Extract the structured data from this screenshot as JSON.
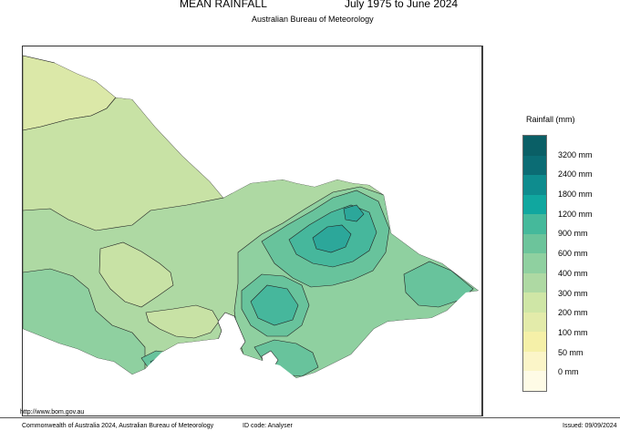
{
  "header": {
    "title": "MEAN RAINFALL",
    "period": "July 1975 to June 2024",
    "subtitle": "Australian Bureau of Meteorology"
  },
  "legend": {
    "title": "Rainfall (mm)",
    "classes": [
      {
        "label": "3200 mm",
        "color": "#0b6c74"
      },
      {
        "label": "2400 mm",
        "color": "#0e8c8e"
      },
      {
        "label": "1800 mm",
        "color": "#10a79f"
      },
      {
        "label": "1200 mm",
        "color": "#45b99b"
      },
      {
        "label": "900 mm",
        "color": "#6cc49b"
      },
      {
        "label": "600 mm",
        "color": "#8fd0a0"
      },
      {
        "label": "400 mm",
        "color": "#aed9a3"
      },
      {
        "label": "300 mm",
        "color": "#cfe6a6"
      },
      {
        "label": "200 mm",
        "color": "#e3ebaa"
      },
      {
        "label": "100 mm",
        "color": "#f5f0a8"
      },
      {
        "label": "50 mm",
        "color": "#fbf5c8"
      },
      {
        "label": "0 mm",
        "color": "#fefbe6"
      }
    ]
  },
  "map": {
    "region": "Victoria",
    "zone_colors": {
      "lt300": "#dbe8a8",
      "r300_400": "#c8e2a5",
      "r400_600": "#aed9a3",
      "r600_900": "#8fd0a0",
      "r900_1200": "#68c39c",
      "r1200_1800": "#46b79c",
      "r1800_2400": "#2ca79a",
      "water": "#ffffff"
    }
  },
  "footer": {
    "url": "http://www.bom.gov.au",
    "copyright": "Commonwealth of Australia 2024, Australian Bureau of Meteorology",
    "id_code": "ID code: Analyser",
    "issued": "Issued: 09/09/2024"
  }
}
